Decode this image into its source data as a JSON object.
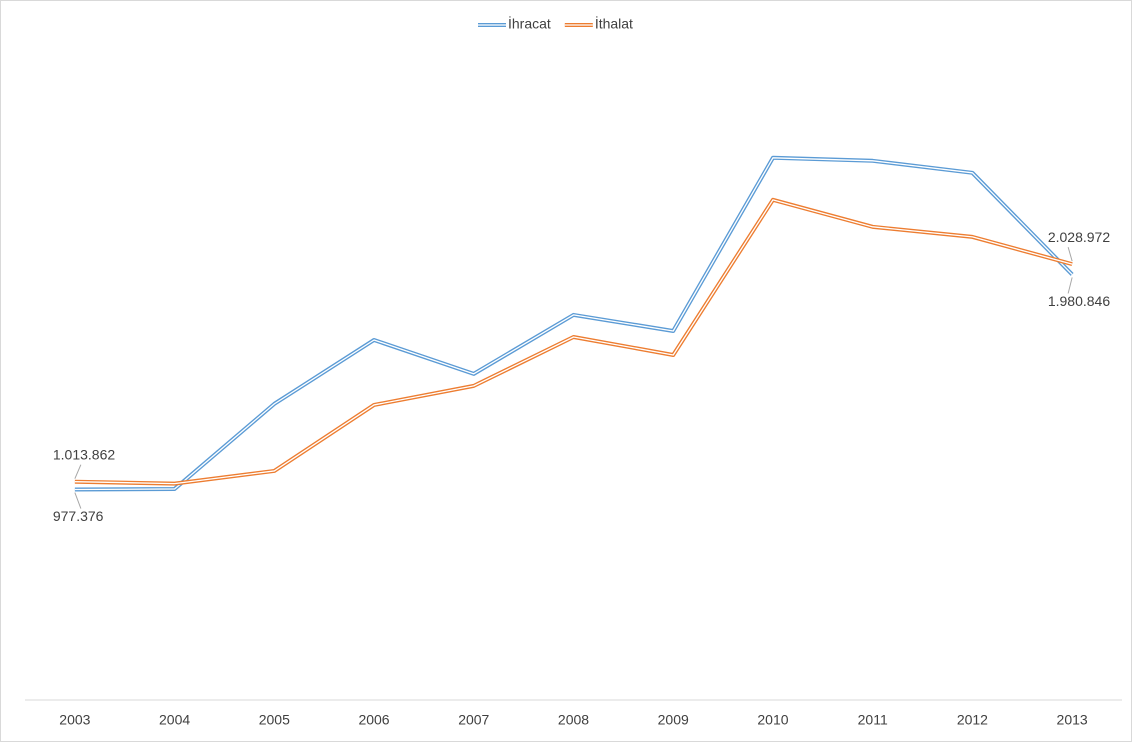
{
  "chart_data": {
    "type": "line",
    "categories": [
      "2003",
      "2004",
      "2005",
      "2006",
      "2007",
      "2008",
      "2009",
      "2010",
      "2011",
      "2012",
      "2013"
    ],
    "series": [
      {
        "name": "İhracat",
        "color": "#5b9bd5",
        "values": [
          977376,
          980000,
          1377000,
          1675000,
          1517000,
          1792000,
          1717000,
          2525000,
          2511000,
          2455000,
          1980846
        ],
        "value_labels": [
          "977.376",
          null,
          null,
          null,
          null,
          null,
          null,
          null,
          null,
          null,
          "1.980.846"
        ]
      },
      {
        "name": "İthalat",
        "color": "#ed7d31",
        "values": [
          1013862,
          1005000,
          1064000,
          1372000,
          1461000,
          1689000,
          1605000,
          2329000,
          2203000,
          2156000,
          2028972
        ],
        "value_labels": [
          "1.013.862",
          null,
          null,
          null,
          null,
          null,
          null,
          null,
          null,
          null,
          "2.028.972"
        ]
      }
    ],
    "ylim": [
      0,
      3000000
    ],
    "legend": "top"
  }
}
